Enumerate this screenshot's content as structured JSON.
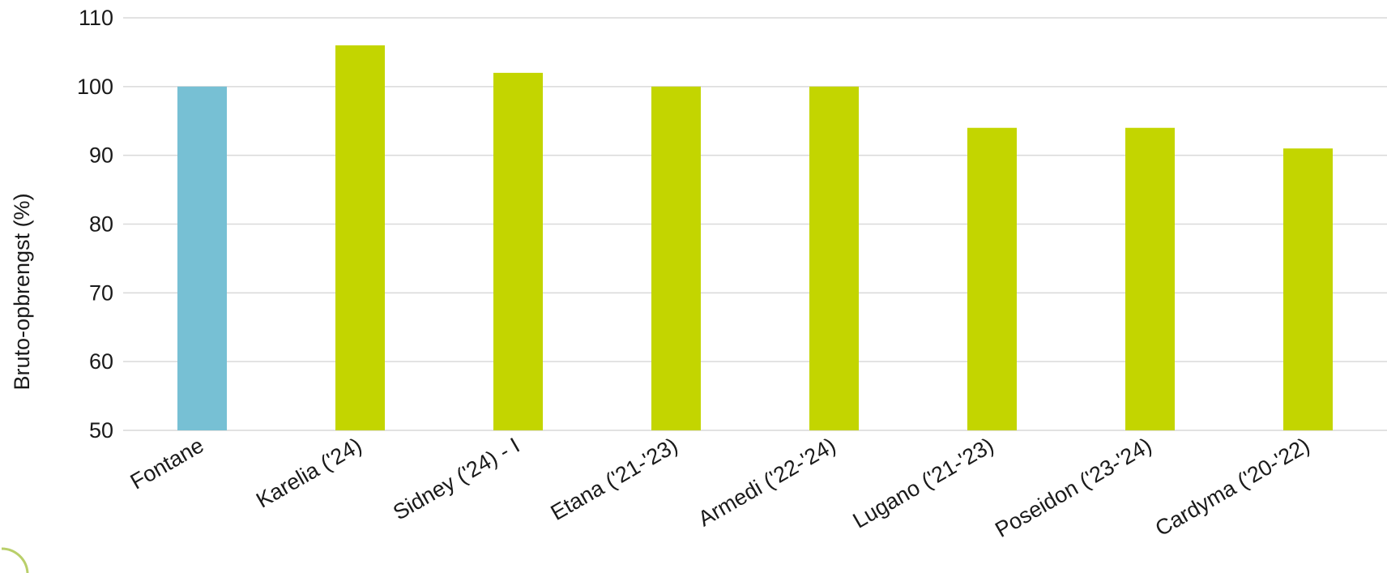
{
  "chart_data": {
    "type": "bar",
    "title": "",
    "xlabel": "",
    "ylabel": "Bruto-opbrengst (%)",
    "ylim": [
      50,
      110
    ],
    "yticks": [
      50,
      60,
      70,
      80,
      90,
      100,
      110
    ],
    "grid": true,
    "legend": "none",
    "categories": [
      "Fontane",
      "Karelia ('24)",
      "Sidney ('24) - I",
      "Etana ('21-'23)",
      "Armedi ('22-'24)",
      "Lugano ('21-'23)",
      "Poseidon ('23-'24)",
      "Cardyma ('20-'22)"
    ],
    "values": [
      100,
      106,
      102,
      100,
      100,
      94,
      94,
      91
    ],
    "bar_colors": [
      "#77c0d4",
      "#c3d500",
      "#c3d500",
      "#c3d500",
      "#c3d500",
      "#c3d500",
      "#c3d500",
      "#c3d500"
    ]
  },
  "decoration": {
    "corner_mark_icon": "circle-arc-icon",
    "corner_mark_color": "#b9cf6a"
  }
}
